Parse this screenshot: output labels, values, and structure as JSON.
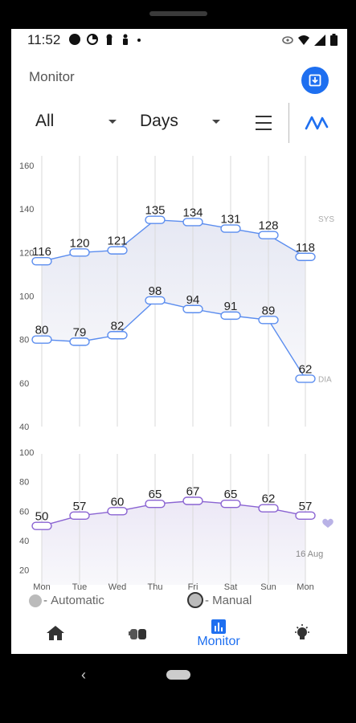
{
  "status_bar": {
    "time": "11:52"
  },
  "header": {
    "title": "Monitor"
  },
  "filters": {
    "type": "All",
    "period": "Days"
  },
  "chart_data": [
    {
      "type": "line",
      "title": "",
      "categories": [
        "Mon",
        "Tue",
        "Wed",
        "Thu",
        "Fri",
        "Sat",
        "Sun",
        "Mon"
      ],
      "yticks": [
        40,
        60,
        80,
        100,
        120,
        140,
        160
      ],
      "ylim": [
        40,
        160
      ],
      "series": [
        {
          "name": "SYS",
          "values": [
            116,
            120,
            121,
            135,
            134,
            131,
            128,
            118
          ]
        },
        {
          "name": "DIA",
          "values": [
            80,
            79,
            82,
            98,
            94,
            91,
            89,
            62
          ]
        }
      ],
      "grid": true
    },
    {
      "type": "line",
      "title": "",
      "categories": [
        "Mon",
        "Tue",
        "Wed",
        "Thu",
        "Fri",
        "Sat",
        "Sun",
        "Mon"
      ],
      "yticks": [
        20,
        40,
        60,
        80,
        100
      ],
      "ylim": [
        10,
        100
      ],
      "series": [
        {
          "name": "",
          "values": [
            50,
            57,
            60,
            65,
            67,
            65,
            62,
            57
          ]
        }
      ],
      "date_label": "16 Aug",
      "grid": true
    }
  ],
  "colors": {
    "accent": "#1e6ff0",
    "bp_line": "#5b8def",
    "pulse_line": "#8a63d2"
  },
  "legend": {
    "automatic": "Automatic",
    "manual": "Manual"
  },
  "nav": {
    "active_label": "Monitor"
  }
}
